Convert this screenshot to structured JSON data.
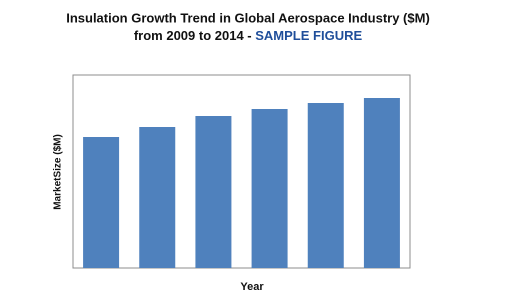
{
  "chart_data": {
    "type": "bar",
    "title": "Insulation Growth Trend in Global Aerospace Industry ($M)",
    "subtitle": "from 2009 to 2014 -",
    "annotation": "SAMPLE FIGURE",
    "x_label": "Year",
    "y_label": "MarketSize ($M)",
    "categories": [
      null,
      null,
      null,
      null,
      null,
      null
    ],
    "values": [
      131,
      141,
      152,
      159,
      165,
      170
    ],
    "color": "#4f81bd",
    "ylim": [
      0,
      193
    ]
  }
}
